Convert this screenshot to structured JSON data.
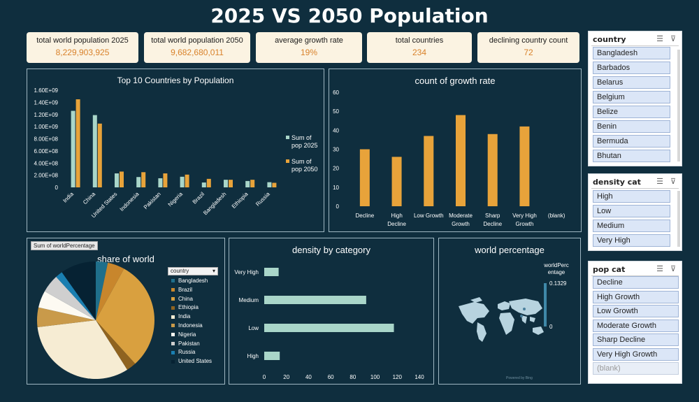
{
  "title": "2025 VS 2050 Population",
  "kpis": [
    {
      "label": "total world population 2025",
      "value": "8,229,903,925"
    },
    {
      "label": "total world population 2050",
      "value": "9,682,680,011"
    },
    {
      "label": "average growth rate",
      "value": "19%"
    },
    {
      "label": "total countries",
      "value": "234"
    },
    {
      "label": "declining country count",
      "value": "72"
    }
  ],
  "colors": {
    "bg": "#0f2e3e",
    "teal": "#a9d6c9",
    "orange": "#e8a33a",
    "cream": "#fbf3e2"
  },
  "charts": {
    "top10": {
      "title": "Top 10 Countries by Population",
      "legend": [
        "Sum of pop 2025",
        "Sum of pop 2050"
      ]
    },
    "growth": {
      "title": "count of growth rate"
    },
    "share": {
      "title": "share of world",
      "field_button": "Sum of worldPercentage",
      "dropdown": "country"
    },
    "density": {
      "title": "density by category"
    },
    "worldmap": {
      "title": "world percentage",
      "legend_title": "worldPerc entage",
      "legend_max": "0.1329",
      "legend_min": "0",
      "credit": "Powered by Bing"
    }
  },
  "chart_data": [
    {
      "type": "bar",
      "title": "Top 10 Countries by Population",
      "categories": [
        "India",
        "China",
        "United States",
        "Indonesia",
        "Pakistan",
        "Nigeria",
        "Brazil",
        "Bangladesh",
        "Ethiopia",
        "Russia"
      ],
      "series": [
        {
          "name": "Sum of pop 2025",
          "color": "#a9d6c9",
          "values": [
            1260000000.0,
            1190000000.0,
            230000000.0,
            170000000.0,
            150000000.0,
            175000000.0,
            80000000.0,
            125000000.0,
            105000000.0,
            85000000.0
          ]
        },
        {
          "name": "Sum of pop 2050",
          "color": "#e8a33a",
          "values": [
            1450000000.0,
            1050000000.0,
            260000000.0,
            250000000.0,
            230000000.0,
            210000000.0,
            140000000.0,
            125000000.0,
            125000000.0,
            75000000.0
          ]
        }
      ],
      "yticks": [
        "0",
        "2.00E+08",
        "4.00E+08",
        "6.00E+08",
        "8.00E+08",
        "1.00E+09",
        "1.20E+09",
        "1.40E+09",
        "1.60E+09"
      ],
      "ylim": [
        0,
        1600000000.0
      ],
      "legend": "right"
    },
    {
      "type": "bar",
      "title": "count of growth rate",
      "categories": [
        [
          "Decline"
        ],
        [
          "High",
          "Decline"
        ],
        [
          "Low Growth"
        ],
        [
          "Moderate",
          "Growth"
        ],
        [
          "Sharp",
          "Decline"
        ],
        [
          "Very High",
          "Growth"
        ],
        [
          "(blank)"
        ]
      ],
      "values": [
        30,
        26,
        37,
        48,
        38,
        42,
        0
      ],
      "yticks": [
        "0",
        "10",
        "20",
        "30",
        "40",
        "50",
        "60"
      ],
      "ylim": [
        0,
        60
      ],
      "color": "#e8a33a"
    },
    {
      "type": "pie",
      "title": "share of world",
      "labels": [
        "Bangladesh",
        "Brazil",
        "China",
        "Ethiopia",
        "India",
        "Indonesia",
        "Nigeria",
        "Pakistan",
        "Russia",
        "United States"
      ],
      "values": [
        3.3,
        4.7,
        30.3,
        2.7,
        32.1,
        5.4,
        4.7,
        5.0,
        2.0,
        9.8
      ],
      "colors": [
        "#1f6f8b",
        "#c8862c",
        "#d9a03f",
        "#8f6320",
        "#f6ecd3",
        "#c99a4a",
        "#fdfaf2",
        "#cfcfcf",
        "#1a7fb1",
        "#062233"
      ],
      "legend": "right"
    },
    {
      "type": "bar",
      "orientation": "horizontal",
      "title": "density by category",
      "categories": [
        "Very High",
        "Medium",
        "Low",
        "High"
      ],
      "values": [
        13,
        92,
        117,
        14
      ],
      "xticks": [
        "0",
        "20",
        "40",
        "60",
        "80",
        "100",
        "120",
        "140"
      ],
      "xlim": [
        0,
        140
      ],
      "color": "#a9d6c9"
    }
  ],
  "slicers": {
    "country": {
      "header": "country",
      "items": [
        "Bangladesh",
        "Barbados",
        "Belarus",
        "Belgium",
        "Belize",
        "Benin",
        "Bermuda",
        "Bhutan"
      ]
    },
    "density": {
      "header": "density cat",
      "items": [
        "High",
        "Low",
        "Medium",
        "Very High"
      ]
    },
    "popcat": {
      "header": "pop cat",
      "items": [
        "Decline",
        "High Growth",
        "Low Growth",
        "Moderate Growth",
        "Sharp Decline",
        "Very High Growth",
        "(blank)"
      ]
    }
  }
}
